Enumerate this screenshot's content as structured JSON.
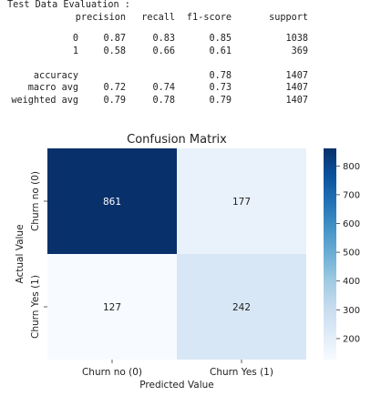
{
  "report": {
    "title": "Test Data Evaluation :",
    "headers": [
      "precision",
      "recall",
      "f1-score",
      "support"
    ],
    "rows": [
      {
        "label": "0",
        "cells": [
          "0.87",
          "0.83",
          "0.85",
          "1038"
        ]
      },
      {
        "label": "1",
        "cells": [
          "0.58",
          "0.66",
          "0.61",
          "369"
        ]
      },
      {
        "label": "",
        "cells": [
          "",
          "",
          "",
          ""
        ]
      },
      {
        "label": "accuracy",
        "cells": [
          "",
          "",
          "0.78",
          "1407"
        ]
      },
      {
        "label": "macro avg",
        "cells": [
          "0.72",
          "0.74",
          "0.73",
          "1407"
        ]
      },
      {
        "label": "weighted avg",
        "cells": [
          "0.79",
          "0.78",
          "0.79",
          "1407"
        ]
      }
    ]
  },
  "chart_data": {
    "type": "heatmap",
    "title": "Confusion Matrix",
    "xlabel": "Predicted Value",
    "ylabel": "Actual Value",
    "x_categories": [
      "Churn no (0)",
      "Churn Yes (1)"
    ],
    "y_categories": [
      "Churn no (0)",
      "Churn Yes (1)"
    ],
    "values": [
      [
        861,
        177
      ],
      [
        127,
        242
      ]
    ],
    "colormap": "Blues",
    "colorbar": {
      "min": 127,
      "max": 861,
      "ticks": [
        200,
        300,
        400,
        500,
        600,
        700,
        800
      ]
    },
    "colors": {
      "low": "#f7fbff",
      "high": "#08306b"
    }
  }
}
